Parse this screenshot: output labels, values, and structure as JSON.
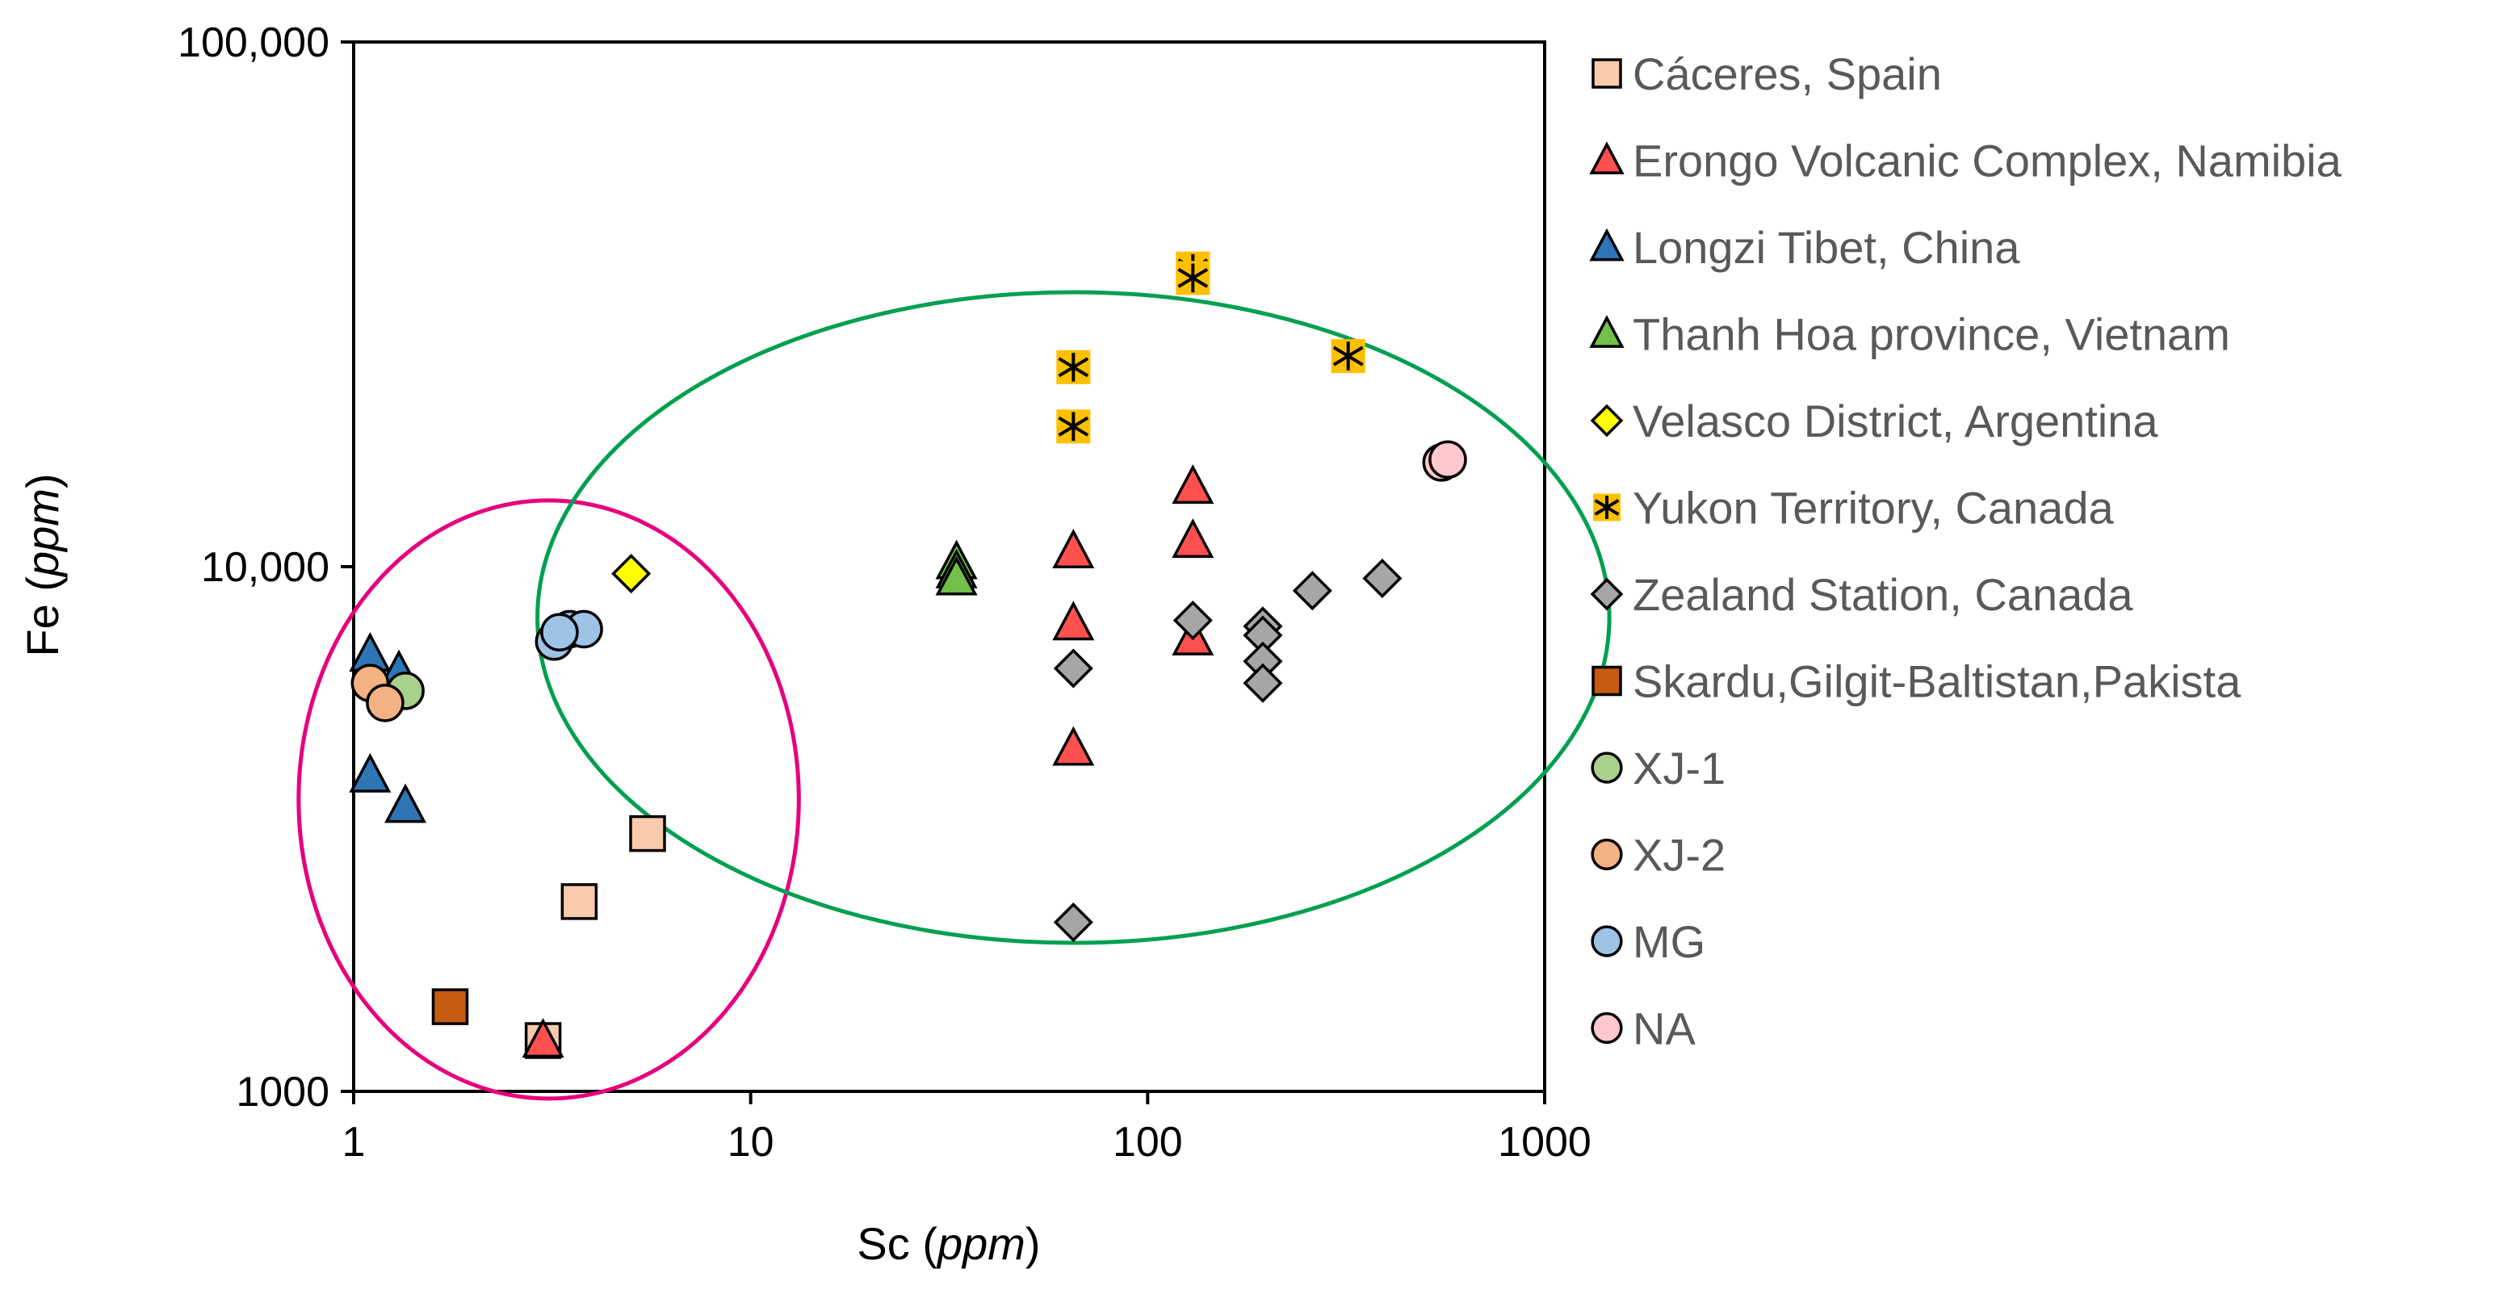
{
  "chart_data": {
    "type": "scatter",
    "x_scale": "log",
    "y_scale": "log",
    "xlabel": "Sc",
    "xlabel_unit": "ppm",
    "ylabel": "Fe",
    "ylabel_unit": "ppm",
    "xlim": [
      1,
      1000
    ],
    "ylim": [
      1000,
      100000
    ],
    "x_ticks": [
      {
        "value": 1,
        "label": "1"
      },
      {
        "value": 10,
        "label": "10"
      },
      {
        "value": 100,
        "label": "100"
      },
      {
        "value": 1000,
        "label": "1000"
      }
    ],
    "y_ticks": [
      {
        "value": 1000,
        "label": "1000"
      },
      {
        "value": 10000,
        "label": "10,000"
      },
      {
        "value": 100000,
        "label": "100,000"
      }
    ],
    "legend_position": "right",
    "series": [
      {
        "name": "Cáceres, Spain",
        "marker": "square",
        "fill": "#f8cbad",
        "stroke": "#000000",
        "points": [
          [
            5.5,
            3100
          ],
          [
            3.7,
            2300
          ],
          [
            3.0,
            1250
          ]
        ]
      },
      {
        "name": "Erongo Volcanic Complex, Namibia",
        "marker": "triangle",
        "fill": "#ff5050",
        "stroke": "#000000",
        "points": [
          [
            3.0,
            1250
          ],
          [
            65,
            10700
          ],
          [
            65,
            7800
          ],
          [
            65,
            4500
          ],
          [
            130,
            14200
          ],
          [
            130,
            11200
          ],
          [
            130,
            7300
          ]
        ]
      },
      {
        "name": "Longzi Tibet, China",
        "marker": "triangle",
        "fill": "#2e75b6",
        "stroke": "#000000",
        "points": [
          [
            1.1,
            6800
          ],
          [
            1.3,
            6300
          ],
          [
            1.1,
            4000
          ],
          [
            1.35,
            3500
          ]
        ]
      },
      {
        "name": "Thanh Hoa province, Vietnam",
        "marker": "triangle",
        "fill": "#70c04a",
        "stroke": "#000000",
        "points": [
          [
            33,
            10200
          ],
          [
            33,
            9800
          ],
          [
            33,
            9500
          ]
        ]
      },
      {
        "name": "Velasco District, Argentina",
        "marker": "diamond",
        "fill": "#ffff00",
        "stroke": "#000000",
        "points": [
          [
            5.0,
            9700
          ]
        ]
      },
      {
        "name": "Yukon Territory, Canada",
        "marker": "asterisk-square",
        "fill": "#ffc000",
        "stroke": "#000000",
        "points": [
          [
            130,
            37000
          ],
          [
            130,
            35500
          ],
          [
            65,
            24000
          ],
          [
            65,
            18500
          ],
          [
            320,
            25200
          ]
        ]
      },
      {
        "name": "Zealand Station, Canada",
        "marker": "diamond",
        "fill": "#a6a6a6",
        "stroke": "#000000",
        "points": [
          [
            65,
            6400
          ],
          [
            65,
            2100
          ],
          [
            130,
            7900
          ],
          [
            195,
            7700
          ],
          [
            195,
            7400
          ],
          [
            195,
            6600
          ],
          [
            195,
            6000
          ],
          [
            260,
            9000
          ],
          [
            390,
            9500
          ]
        ]
      },
      {
        "name": "Skardu,Gilgit-Baltistan,Pakista",
        "marker": "square",
        "fill": "#c55a11",
        "stroke": "#000000",
        "points": [
          [
            1.75,
            1450
          ]
        ]
      },
      {
        "name": "XJ-1",
        "marker": "circle",
        "fill": "#a9d18e",
        "stroke": "#000000",
        "points": [
          [
            1.35,
            5800
          ]
        ]
      },
      {
        "name": "XJ-2",
        "marker": "circle",
        "fill": "#f4b183",
        "stroke": "#000000",
        "points": [
          [
            1.1,
            6000
          ],
          [
            1.2,
            5500
          ]
        ]
      },
      {
        "name": "MG",
        "marker": "circle",
        "fill": "#9dc3e6",
        "stroke": "#000000",
        "points": [
          [
            3.2,
            7200
          ],
          [
            3.5,
            7600
          ],
          [
            3.8,
            7600
          ],
          [
            3.3,
            7500
          ]
        ]
      },
      {
        "name": "NA",
        "marker": "circle",
        "fill": "#ffc7ce",
        "stroke": "#000000",
        "points": [
          [
            550,
            15800
          ],
          [
            570,
            16000
          ]
        ]
      }
    ],
    "annotations": [
      {
        "type": "ellipse",
        "color": "#e6007e",
        "cx": 3.1,
        "cy": 3600,
        "rx_log_decades": 0.63,
        "ry_log_decades": 0.57
      },
      {
        "type": "ellipse",
        "color": "#00a050",
        "cx": 65,
        "cy": 8000,
        "rx_log_decades": 1.35,
        "ry_log_decades": 0.62
      }
    ]
  }
}
